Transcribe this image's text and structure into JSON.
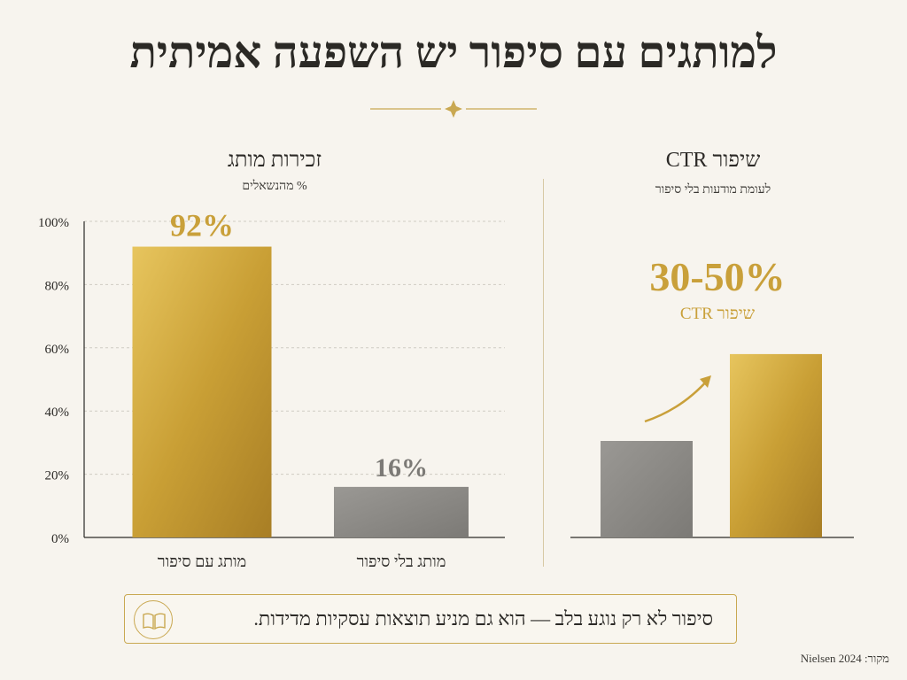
{
  "title": "למותגים עם סיפור יש השפעה אמיתית",
  "colors": {
    "gold": "#c9a03a",
    "gray": "#8a8884",
    "accent": "#c9a851",
    "text": "#2c2a27"
  },
  "left_panel": {
    "title": "זכירות מותג",
    "subtitle": "% מהנשאלים"
  },
  "right_panel": {
    "title": "שיפור CTR",
    "subtitle": "לעומת מודעות בלי סיפור",
    "big_value": "30-50%",
    "big_label": "שיפור CTR"
  },
  "footer": {
    "icon": "open-book-icon",
    "text": "סיפור לא רק נוגע בלב — הוא גם מניע תוצאות עסקיות מדידות."
  },
  "source": "מקור: Nielsen 2024",
  "chart_data": [
    {
      "type": "bar",
      "title": "זכירות מותג",
      "subtitle": "% מהנשאלים",
      "categories": [
        "מותג עם סיפור",
        "מותג בלי סיפור"
      ],
      "values": [
        92,
        16
      ],
      "data_labels": [
        "92%",
        "16%"
      ],
      "bar_colors": [
        "#c9a03a",
        "#8a8884"
      ],
      "yticks": [
        "0%",
        "20%",
        "40%",
        "60%",
        "80%",
        "100%"
      ],
      "ylim": [
        0,
        100
      ],
      "grid": true,
      "legend": "none"
    },
    {
      "type": "bar",
      "title": "שיפור CTR",
      "subtitle": "לעומת מודעות בלי סיפור",
      "categories": [
        "",
        ""
      ],
      "values": [
        1,
        1.9
      ],
      "bar_colors": [
        "#8a8884",
        "#c9a03a"
      ],
      "annotation": "30-50%",
      "annotation_label": "שיפור CTR",
      "grid": false,
      "legend": "none"
    }
  ]
}
